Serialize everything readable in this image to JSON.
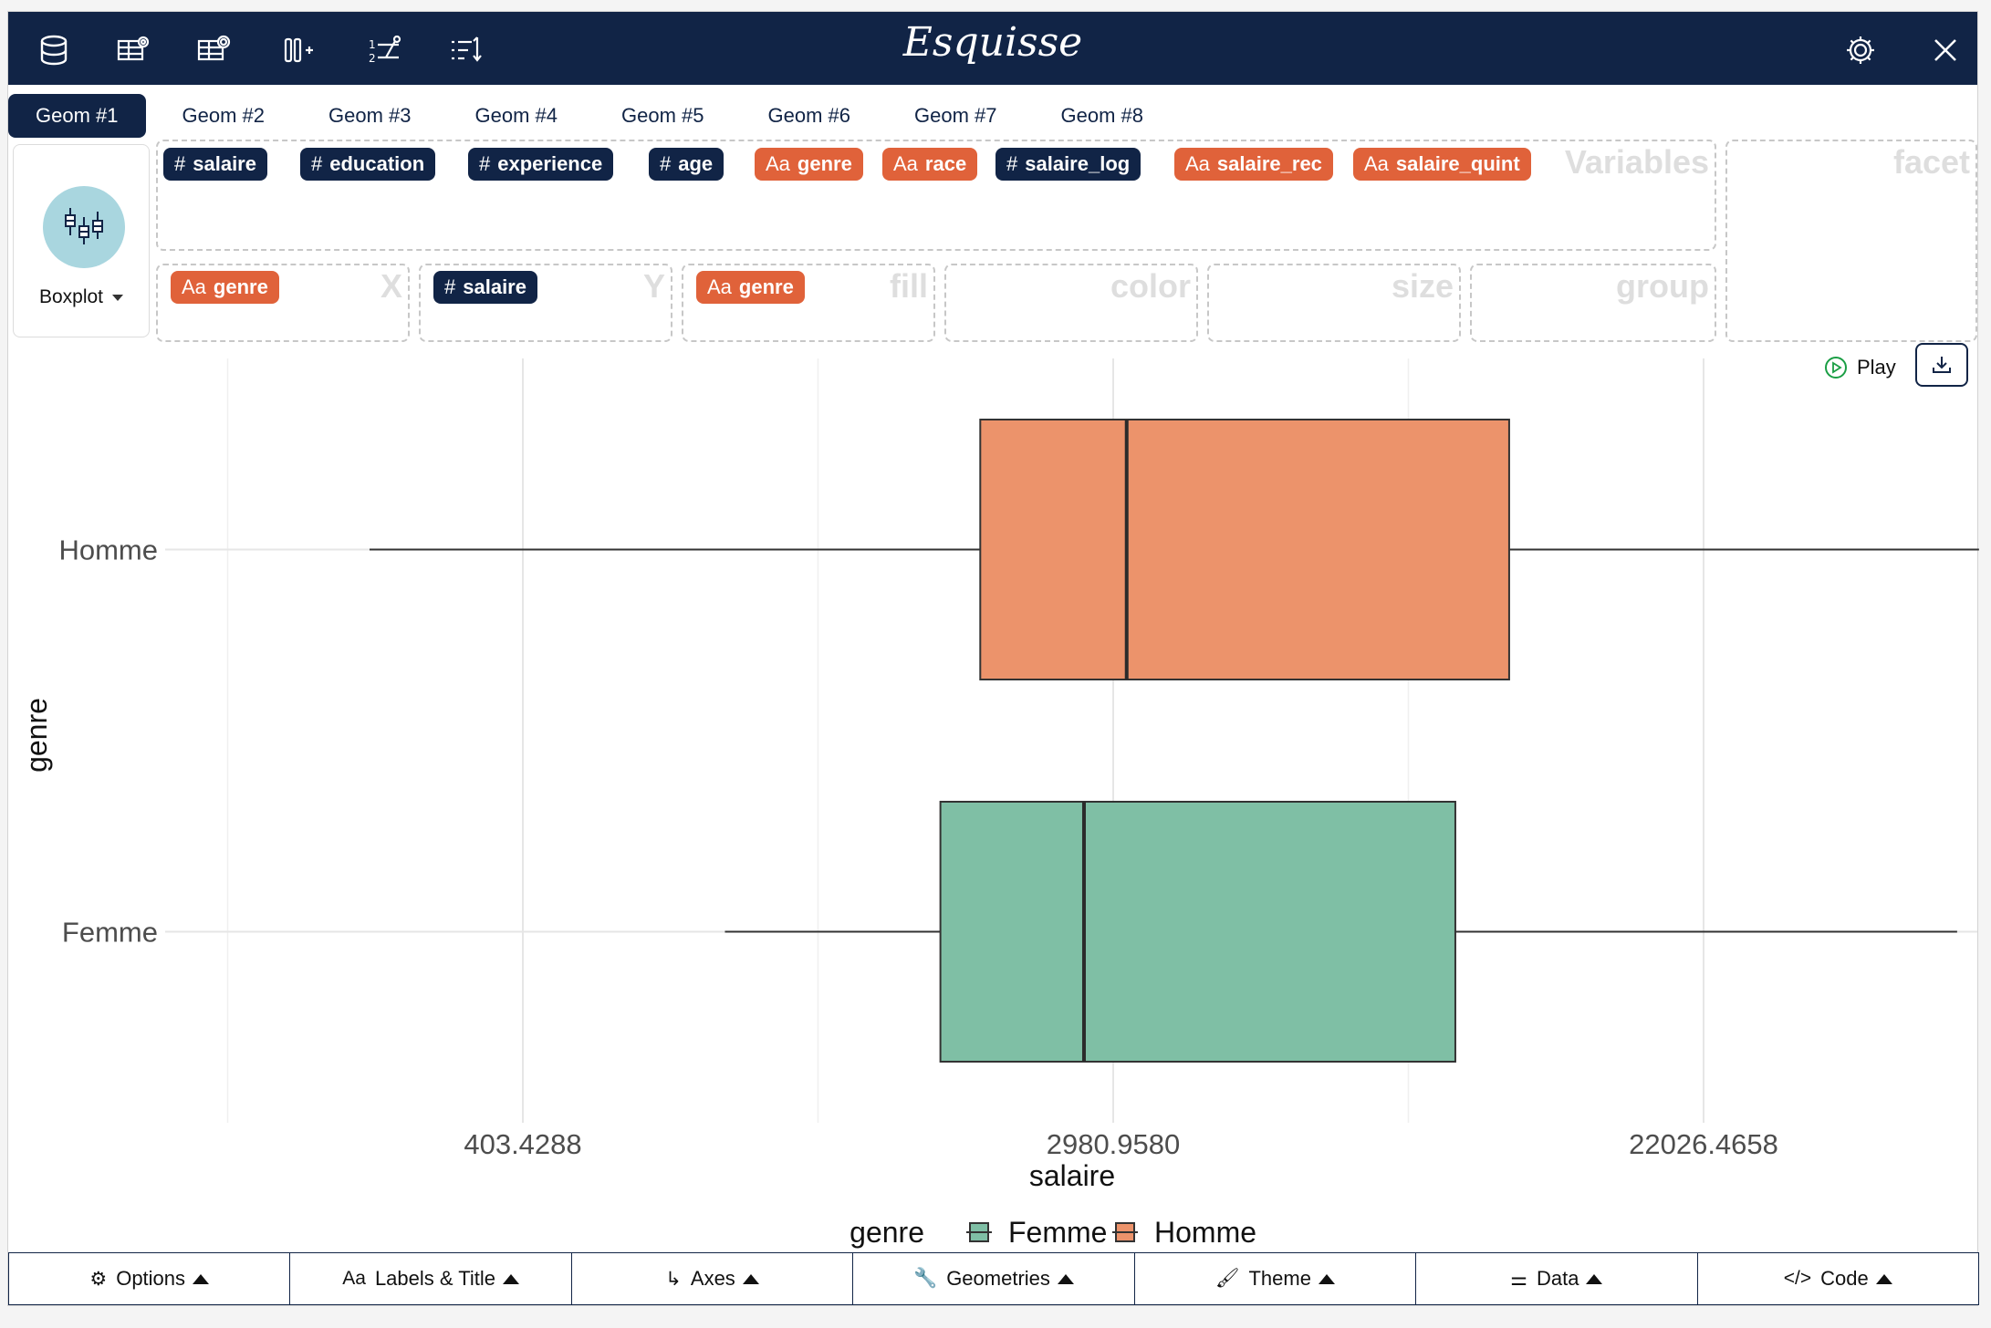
{
  "app": {
    "title": "Esquisse"
  },
  "toolbar_icons": [
    "database-icon",
    "table-view-icon",
    "table-edit-icon",
    "add-column-icon",
    "reorder-icon",
    "sort-icon"
  ],
  "geom_tabs": [
    "Geom #1",
    "Geom #2",
    "Geom #3",
    "Geom #4",
    "Geom #5",
    "Geom #6",
    "Geom #7",
    "Geom #8"
  ],
  "geom_type": {
    "label": "Boxplot"
  },
  "variables": {
    "zone_title": "Variables",
    "items": [
      {
        "type": "#",
        "name": "salaire",
        "kind": "numeric"
      },
      {
        "type": "#",
        "name": "education",
        "kind": "numeric"
      },
      {
        "type": "#",
        "name": "experience",
        "kind": "numeric"
      },
      {
        "type": "#",
        "name": "age",
        "kind": "numeric"
      },
      {
        "type": "Aa",
        "name": "genre",
        "kind": "character"
      },
      {
        "type": "Aa",
        "name": "race",
        "kind": "character"
      },
      {
        "type": "#",
        "name": "salaire_log",
        "kind": "numeric"
      },
      {
        "type": "Aa",
        "name": "salaire_rec",
        "kind": "character"
      },
      {
        "type": "Aa",
        "name": "salaire_quint",
        "kind": "character"
      }
    ]
  },
  "mappings": {
    "x": {
      "title": "X",
      "type": "Aa",
      "value": "genre"
    },
    "y": {
      "title": "Y",
      "type": "#",
      "value": "salaire"
    },
    "fill": {
      "title": "fill",
      "type": "Aa",
      "value": "genre"
    },
    "color": {
      "title": "color"
    },
    "size": {
      "title": "size"
    },
    "group": {
      "title": "group"
    },
    "facet": {
      "title": "facet"
    }
  },
  "actions": {
    "play_label": "Play"
  },
  "chart_data": {
    "type": "boxplot",
    "orientation": "horizontal",
    "xlabel": "salaire",
    "ylabel": "genre",
    "x_scale": "log",
    "x_ticks": [
      "403.4288",
      "2980.9580",
      "22026.4658"
    ],
    "categories": [
      "Homme",
      "Femme"
    ],
    "series": [
      {
        "name": "Homme",
        "min": 240,
        "q1": 1900,
        "median": 3120,
        "q3": 11400,
        "max": 56000,
        "color": "#ec936b"
      },
      {
        "name": "Femme",
        "min": 800,
        "q1": 1660,
        "median": 2700,
        "q3": 9500,
        "max": 52000,
        "color": "#7fbfa5"
      }
    ],
    "legend": {
      "title": "genre",
      "position": "bottom",
      "entries": [
        "Femme",
        "Homme"
      ]
    },
    "grid": true
  },
  "bottom_bar": [
    {
      "icon": "gear-icon",
      "glyph": "⚙",
      "label": "Options"
    },
    {
      "icon": "labels-icon",
      "glyph": "Aa",
      "label": "Labels & Title"
    },
    {
      "icon": "axes-icon",
      "glyph": "↳",
      "label": "Axes"
    },
    {
      "icon": "wrench-icon",
      "glyph": "🔧",
      "label": "Geometries"
    },
    {
      "icon": "paint-roller-icon",
      "glyph": "🖌",
      "label": "Theme"
    },
    {
      "icon": "sliders-icon",
      "glyph": "⚌",
      "label": "Data"
    },
    {
      "icon": "code-icon",
      "glyph": "</>",
      "label": "Code"
    }
  ]
}
